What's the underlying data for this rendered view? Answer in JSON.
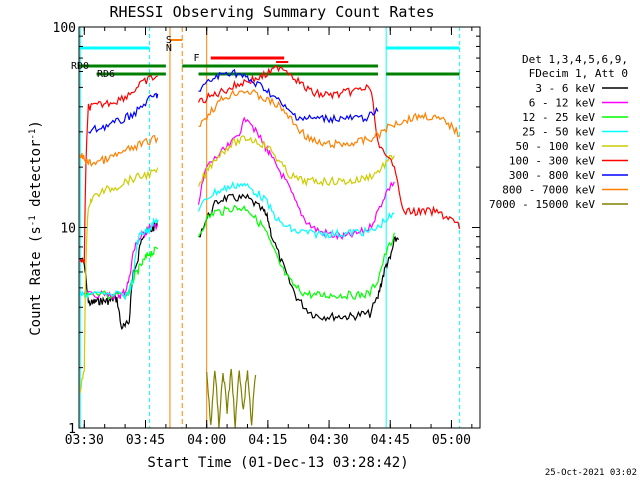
{
  "chart_data": {
    "type": "line",
    "title": "RHESSI Observing Summary Count Rates",
    "xlabel": "Start Time (01-Dec-13 03:28:42)",
    "ylabel": "Count Rate (s",
    "ylabel_sup": "-1",
    "ylabel_tail": " detector",
    "ylabel_end": ")",
    "xlim": [
      "03:28:42",
      "05:07:00"
    ],
    "ylim": [
      1,
      100
    ],
    "yscale": "log",
    "x_ticks": [
      "03:30",
      "03:45",
      "04:00",
      "04:15",
      "04:30",
      "04:45",
      "05:00"
    ],
    "y_ticks": [
      "1",
      "10",
      "100"
    ],
    "legend_position": "right",
    "legend_header": [
      "Det 1,3,4,5,6,9,",
      "FDecim 1, Att 0"
    ],
    "timestamp": "25-Oct-2021 03:02",
    "series": [
      {
        "name": "3 - 6 keV",
        "color": "#000000",
        "x": [
          "03:29",
          "03:30",
          "03:31",
          "03:32",
          "03:33",
          "03:34",
          "03:35",
          "03:36",
          "03:37",
          "03:38",
          "03:39",
          "03:40",
          "03:41",
          "03:42",
          "03:43",
          "03:44",
          "03:45",
          "03:46",
          "03:47",
          "03:48",
          "03:53",
          "03:58",
          "04:00",
          "04:02",
          "04:04",
          "04:06",
          "04:08",
          "04:10",
          "04:12",
          "04:14",
          "04:15",
          "04:16",
          "04:18",
          "04:20",
          "04:22",
          "04:24",
          "04:26",
          "04:28",
          "04:30",
          "04:32",
          "04:34",
          "04:36",
          "04:38",
          "04:40",
          "04:42",
          "04:43",
          "04:44",
          "04:45",
          "04:46",
          "04:47"
        ],
        "y": [
          7.0,
          6.5,
          4.2,
          4.2,
          4.3,
          4.3,
          4.3,
          4.3,
          4.4,
          4.4,
          3.2,
          3.2,
          3.4,
          6.0,
          6.5,
          9.0,
          9.5,
          9.5,
          10.0,
          10.5,
          null,
          9.0,
          11.0,
          13.0,
          14.0,
          14.0,
          14.0,
          14.0,
          13.0,
          12.0,
          11.0,
          9.0,
          7.0,
          5.5,
          4.5,
          4.0,
          3.7,
          3.6,
          3.6,
          3.6,
          3.6,
          3.6,
          3.7,
          3.7,
          4.5,
          5.5,
          6.5,
          7.0,
          8.5,
          9.0
        ]
      },
      {
        "name": "6 - 12 keV",
        "color": "#ff00ff",
        "x": [
          "03:30",
          "03:31",
          "03:35",
          "03:36",
          "03:37",
          "03:38",
          "03:39",
          "03:40",
          "03:41",
          "03:42",
          "03:43",
          "03:44",
          "03:45",
          "03:46",
          "03:47",
          "03:48",
          "03:53",
          "03:58",
          "04:00",
          "04:02",
          "04:04",
          "04:06",
          "04:08",
          "04:10",
          "04:12",
          "04:14",
          "04:15",
          "04:16",
          "04:18",
          "04:20",
          "04:22",
          "04:24",
          "04:26",
          "04:28",
          "04:30",
          "04:32",
          "04:34",
          "04:36",
          "04:38",
          "04:40",
          "04:42",
          "04:44",
          "04:46"
        ],
        "y": [
          4.6,
          4.6,
          4.6,
          4.6,
          4.6,
          4.6,
          4.6,
          4.8,
          5.5,
          7.5,
          8.5,
          9.0,
          9.5,
          10.0,
          10.0,
          10.5,
          null,
          13.0,
          20.0,
          22.0,
          24.0,
          26.0,
          30.0,
          36.0,
          30.0,
          26.0,
          24.0,
          22.0,
          19.0,
          16.0,
          13.0,
          11.0,
          10.0,
          9.5,
          9.3,
          9.0,
          9.0,
          9.2,
          9.5,
          10.0,
          12.0,
          15.0,
          17.0
        ]
      },
      {
        "name": "12 - 25 keV",
        "color": "#00ff00",
        "x": [
          "03:30",
          "03:31",
          "03:35",
          "03:40",
          "03:41",
          "03:42",
          "03:43",
          "03:44",
          "03:45",
          "03:46",
          "03:47",
          "03:48",
          "03:53",
          "03:58",
          "04:00",
          "04:02",
          "04:04",
          "04:06",
          "04:08",
          "04:10",
          "04:12",
          "04:14",
          "04:16",
          "04:18",
          "04:20",
          "04:22",
          "04:24",
          "04:26",
          "04:28",
          "04:30",
          "04:32",
          "04:34",
          "04:36",
          "04:38",
          "04:40",
          "04:42",
          "04:44",
          "04:46"
        ],
        "y": [
          4.6,
          4.6,
          4.6,
          4.6,
          4.8,
          5.5,
          6.0,
          6.5,
          7.0,
          7.5,
          7.5,
          8.0,
          null,
          9.0,
          11.0,
          12.0,
          12.0,
          12.5,
          12.5,
          12.5,
          11.0,
          10.0,
          8.0,
          6.5,
          5.5,
          5.0,
          4.7,
          4.6,
          4.6,
          4.6,
          4.6,
          4.6,
          4.6,
          4.6,
          4.7,
          5.5,
          7.5,
          9.0
        ]
      },
      {
        "name": "25 - 50 keV",
        "color": "#00ffff",
        "x": [
          "03:29",
          "03:30",
          "03:31",
          "03:35",
          "03:40",
          "03:41",
          "03:42",
          "03:43",
          "03:44",
          "03:45",
          "03:46",
          "03:47",
          "03:48",
          "03:53",
          "03:58",
          "04:00",
          "04:02",
          "04:04",
          "04:06",
          "04:08",
          "04:10",
          "04:12",
          "04:14",
          "04:16",
          "04:18",
          "04:20",
          "04:22",
          "04:24",
          "04:26",
          "04:28",
          "04:30",
          "04:32",
          "04:34",
          "04:36",
          "04:38",
          "04:40",
          "04:42",
          "04:44",
          "04:46"
        ],
        "y": [
          4.6,
          4.6,
          4.6,
          4.6,
          4.6,
          4.8,
          5.5,
          8.5,
          9.5,
          9.5,
          10.0,
          10.5,
          11.0,
          null,
          12.0,
          14.0,
          15.0,
          15.5,
          16.0,
          16.5,
          16.0,
          15.0,
          14.0,
          12.0,
          10.5,
          10.0,
          9.5,
          9.5,
          9.3,
          9.3,
          9.3,
          9.3,
          9.3,
          9.5,
          9.5,
          9.5,
          10.0,
          11.0,
          11.5
        ]
      },
      {
        "name": "50 - 100 keV",
        "color": "#cccc00",
        "x": [
          "03:29",
          "03:30",
          "03:31",
          "03:32",
          "03:34",
          "03:36",
          "03:38",
          "03:40",
          "03:42",
          "03:44",
          "03:46",
          "03:48",
          "03:53",
          "03:58",
          "04:00",
          "04:02",
          "04:04",
          "04:06",
          "04:08",
          "04:10",
          "04:12",
          "04:14",
          "04:16",
          "04:18",
          "04:20",
          "04:22",
          "04:24",
          "04:26",
          "04:28",
          "04:30",
          "04:32",
          "04:34",
          "04:36",
          "04:38",
          "04:40",
          "04:42",
          "04:44",
          "04:46"
        ],
        "y": [
          1.5,
          2.0,
          13.0,
          14.0,
          15.0,
          15.5,
          16.0,
          17.0,
          17.5,
          18.0,
          18.5,
          19.0,
          null,
          16.0,
          19.0,
          22.0,
          24.0,
          26.0,
          27.0,
          28.0,
          27.0,
          26.0,
          24.0,
          21.0,
          18.5,
          17.5,
          17.0,
          17.0,
          17.0,
          17.0,
          17.0,
          17.0,
          17.0,
          17.5,
          18.0,
          19.0,
          21.0,
          23.0
        ]
      },
      {
        "name": "100 - 300 keV",
        "color": "#ff0000",
        "x": [
          "03:29",
          "03:30",
          "03:31",
          "03:32",
          "03:34",
          "03:36",
          "03:38",
          "03:40",
          "03:42",
          "03:44",
          "03:46",
          "03:48",
          "03:53",
          "03:58",
          "04:00",
          "04:02",
          "04:04",
          "04:06",
          "04:08",
          "04:10",
          "04:12",
          "04:14",
          "04:16",
          "04:18",
          "04:20",
          "04:22",
          "04:24",
          "04:26",
          "04:28",
          "04:30",
          "04:32",
          "04:34",
          "04:36",
          "04:38",
          "04:40",
          "04:42",
          "04:44",
          "04:46",
          "04:48",
          "04:50",
          "04:52",
          "04:54",
          "04:56",
          "04:58",
          "05:00",
          "05:02"
        ],
        "y": [
          7.0,
          6.5,
          40.0,
          40.0,
          41.0,
          42.0,
          43.0,
          45.0,
          48.0,
          52.0,
          55.0,
          57.0,
          null,
          42.0,
          44.0,
          46.0,
          48.0,
          50.0,
          52.0,
          54.0,
          55.0,
          57.0,
          60.0,
          64.0,
          60.0,
          55.0,
          50.0,
          47.0,
          46.0,
          46.0,
          46.0,
          47.0,
          48.0,
          49.0,
          50.0,
          26.0,
          22.0,
          21.0,
          12.0,
          12.0,
          12.0,
          12.0,
          12.0,
          11.5,
          11.0,
          10.0
        ]
      },
      {
        "name": "300 - 800 keV",
        "color": "#0000ff",
        "x": [
          "03:31",
          "03:33",
          "03:35",
          "03:37",
          "03:39",
          "03:41",
          "03:43",
          "03:45",
          "03:47",
          "03:48",
          "03:53",
          "03:58",
          "04:00",
          "04:02",
          "04:04",
          "04:06",
          "04:08",
          "04:10",
          "04:12",
          "04:14",
          "04:16",
          "04:18",
          "04:20",
          "04:22",
          "04:24",
          "04:26",
          "04:28",
          "04:30",
          "04:32",
          "04:34",
          "04:36",
          "04:38",
          "04:40",
          "04:42"
        ],
        "y": [
          30.0,
          31.0,
          32.0,
          33.0,
          34.0,
          36.0,
          38.0,
          42.0,
          45.0,
          46.0,
          null,
          48.0,
          52.0,
          56.0,
          58.0,
          60.0,
          58.0,
          55.0,
          52.0,
          50.0,
          46.0,
          42.0,
          38.0,
          36.0,
          35.0,
          35.0,
          35.0,
          35.0,
          35.0,
          35.0,
          35.0,
          35.0,
          36.0,
          38.0
        ]
      },
      {
        "name": "800 - 7000 keV",
        "color": "#ff8000",
        "x": [
          "03:29",
          "03:30",
          "03:31",
          "03:32",
          "03:34",
          "03:36",
          "03:38",
          "03:40",
          "03:42",
          "03:44",
          "03:46",
          "03:48",
          "03:53",
          "03:58",
          "04:00",
          "04:02",
          "04:04",
          "04:06",
          "04:08",
          "04:10",
          "04:12",
          "04:14",
          "04:16",
          "04:18",
          "04:20",
          "04:22",
          "04:24",
          "04:26",
          "04:28",
          "04:30",
          "04:32",
          "04:34",
          "04:36",
          "04:38",
          "04:40",
          "04:42",
          "04:44",
          "04:46",
          "04:48",
          "04:50",
          "04:52",
          "04:54",
          "04:56",
          "04:58",
          "05:00",
          "05:02"
        ],
        "y": [
          23.0,
          22.0,
          21.0,
          21.0,
          21.5,
          22.0,
          23.0,
          24.0,
          25.0,
          26.0,
          27.0,
          28.0,
          null,
          32.0,
          36.0,
          40.0,
          44.0,
          46.0,
          48.0,
          48.0,
          46.0,
          44.0,
          42.0,
          40.0,
          36.0,
          32.0,
          29.0,
          27.0,
          26.0,
          26.0,
          26.0,
          26.0,
          26.5,
          27.0,
          27.5,
          29.0,
          31.0,
          33.0,
          34.0,
          35.0,
          36.0,
          36.0,
          35.0,
          34.0,
          32.0,
          29.0
        ]
      },
      {
        "name": "7000 - 15000 keV",
        "color": "#808000",
        "x": [
          "04:00",
          "04:01",
          "04:02",
          "04:03",
          "04:04",
          "04:05",
          "04:06",
          "04:07",
          "04:08",
          "04:09",
          "04:10",
          "04:11",
          "04:12"
        ],
        "y": [
          1.9,
          1.0,
          1.9,
          1.0,
          1.9,
          1.2,
          1.9,
          1.0,
          1.9,
          1.2,
          1.9,
          1.0,
          1.9
        ]
      }
    ],
    "annotations": [
      {
        "label": "S",
        "color": "#ff8000",
        "at": "03:50"
      },
      {
        "label": "N",
        "color": "#00ffff",
        "at": "03:50"
      },
      {
        "label": "F",
        "color": "#ff0000",
        "at": "03:58"
      },
      {
        "label": "RD0",
        "color": "#008000",
        "at": "03:30"
      },
      {
        "label": "RD6",
        "color": "#008000",
        "at": "03:30"
      }
    ]
  }
}
